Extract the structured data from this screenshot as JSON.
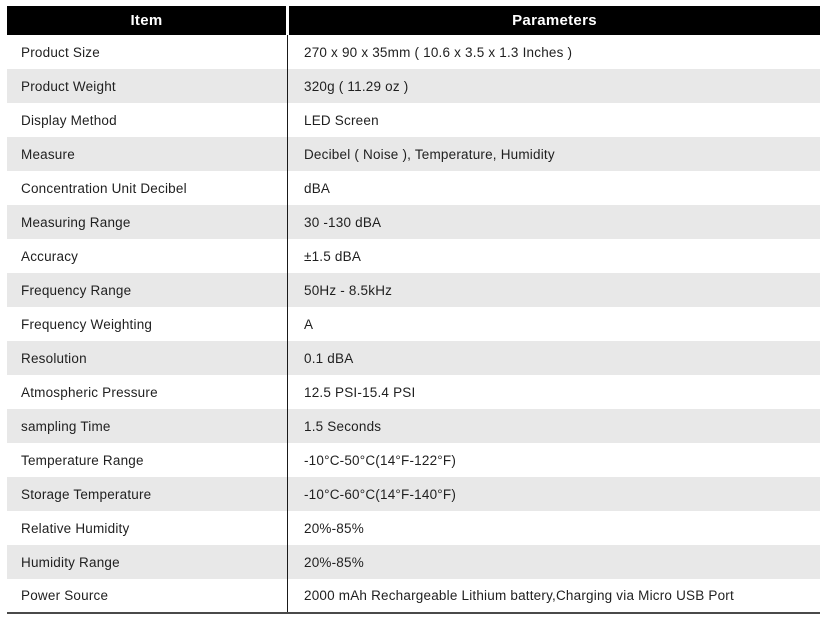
{
  "table": {
    "headers": [
      "Item",
      "Parameters"
    ],
    "rows": [
      {
        "item": "Product Size",
        "parameters": "270 x 90 x 35mm ( 10.6 x 3.5 x 1.3 Inches )"
      },
      {
        "item": "Product Weight",
        "parameters": "320g ( 11.29 oz )"
      },
      {
        "item": "Display Method",
        "parameters": "LED Screen"
      },
      {
        "item": "Measure",
        "parameters": "Decibel ( Noise ), Temperature, Humidity"
      },
      {
        "item": "Concentration Unit Decibel",
        "parameters": "dBA"
      },
      {
        "item": "Measuring Range",
        "parameters": "30 -130 dBA"
      },
      {
        "item": "Accuracy",
        "parameters": "±1.5 dBA"
      },
      {
        "item": "Frequency Range",
        "parameters": "50Hz - 8.5kHz"
      },
      {
        "item": "Frequency Weighting",
        "parameters": "A"
      },
      {
        "item": "Resolution",
        "parameters": "0.1 dBA"
      },
      {
        "item": "Atmospheric Pressure",
        "parameters": "12.5 PSI-15.4 PSI"
      },
      {
        "item": "sampling Time",
        "parameters": "1.5 Seconds"
      },
      {
        "item": "Temperature Range",
        "parameters": "-10°C-50°C(14°F-122°F)"
      },
      {
        "item": "Storage Temperature",
        "parameters": "-10°C-60°C(14°F-140°F)"
      },
      {
        "item": "Relative Humidity",
        "parameters": "20%-85%"
      },
      {
        "item": "Humidity Range",
        "parameters": "20%-85%"
      },
      {
        "item": "Power Source",
        "parameters": "2000 mAh Rechargeable Lithium battery,Charging via Micro USB Port"
      }
    ]
  }
}
